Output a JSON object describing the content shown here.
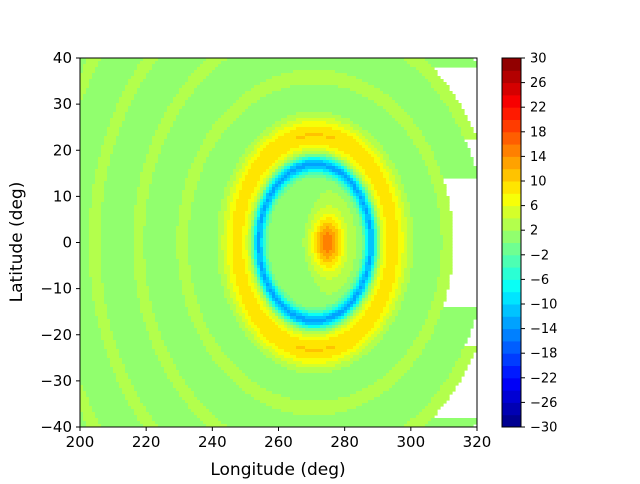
{
  "chart_data": {
    "type": "heatmap",
    "subtype": "filled-contour",
    "colormap": "jet",
    "xlabel": "Longitude (deg)",
    "ylabel": "Latitude (deg)",
    "xlim": [
      200,
      320
    ],
    "ylim": [
      -40,
      40
    ],
    "x_ticks": [
      "200",
      "220",
      "240",
      "260",
      "280",
      "300",
      "320"
    ],
    "y_ticks": [
      "−40",
      "−30",
      "−20",
      "−10",
      "0",
      "10",
      "20",
      "30",
      "40"
    ],
    "x_tick_values": [
      200,
      220,
      240,
      260,
      280,
      300,
      320
    ],
    "y_tick_values": [
      -40,
      -30,
      -20,
      -10,
      0,
      10,
      20,
      30,
      40
    ],
    "colorbar": {
      "range": [
        -30,
        30
      ],
      "level_step": 2,
      "tick_labels": [
        "−30",
        "−26",
        "−22",
        "−18",
        "−14",
        "−10",
        "−6",
        "−2",
        "2",
        "6",
        "10",
        "14",
        "18",
        "22",
        "26",
        "30"
      ],
      "tick_values": [
        -30,
        -26,
        -22,
        -18,
        -14,
        -10,
        -6,
        -2,
        2,
        6,
        10,
        14,
        18,
        22,
        26,
        30
      ]
    },
    "features": [
      {
        "kind": "central-peak",
        "lon": 275,
        "lat": 0,
        "value": 15
      },
      {
        "kind": "negative-ring",
        "center_lon": 271,
        "center_lat": 0,
        "radius_lon": 17,
        "radius_lat": 17,
        "value": -14
      },
      {
        "kind": "positive-halo",
        "center_lon": 271,
        "center_lat": 0,
        "radius_lon": 23,
        "radius_lat": 23,
        "value": 8
      },
      {
        "kind": "concentric-ripples",
        "amplitude": 2,
        "wavelength_deg": 12
      }
    ]
  }
}
